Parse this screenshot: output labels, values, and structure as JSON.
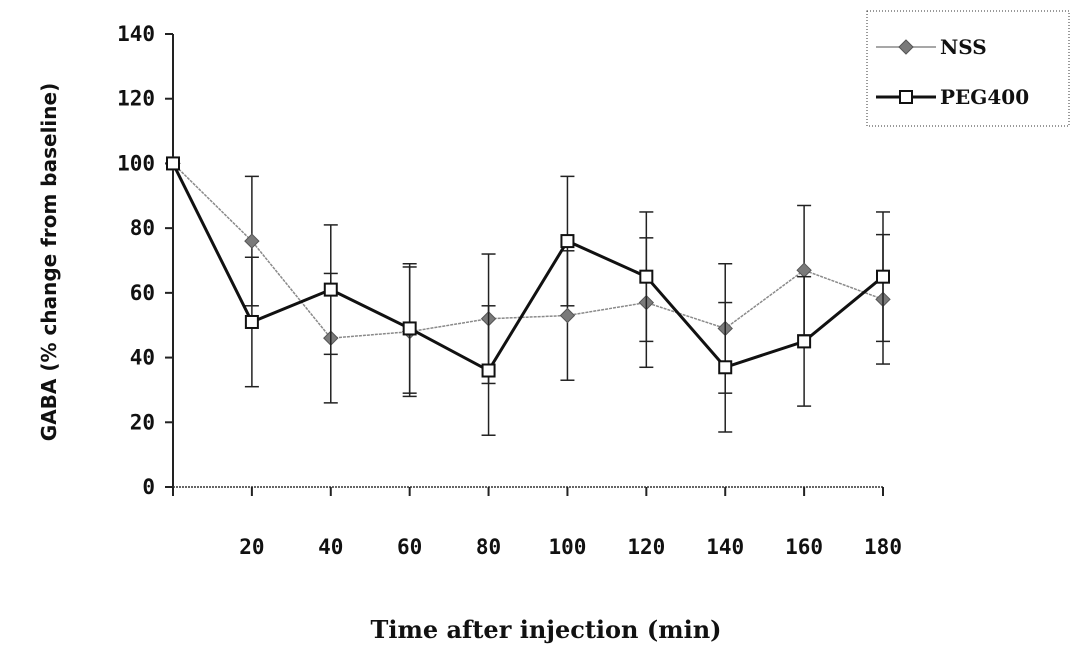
{
  "chart_data": {
    "type": "line",
    "xlabel": "Time after injection (min)",
    "ylabel": "GABA (% change from baseline)",
    "x": [
      0,
      20,
      40,
      60,
      80,
      100,
      120,
      140,
      160,
      180
    ],
    "x_tick_labels": [
      "20",
      "40",
      "60",
      "80",
      "100",
      "120",
      "140",
      "160",
      "180"
    ],
    "y_tick_labels": [
      "0",
      "20",
      "40",
      "60",
      "80",
      "100",
      "120",
      "140"
    ],
    "xlim": [
      0,
      180
    ],
    "ylim": [
      0,
      140
    ],
    "grid": false,
    "legend_position": "top-right",
    "series": [
      {
        "name": "NSS",
        "marker": "diamond",
        "color": "#8a8a8a",
        "values": [
          100,
          76,
          46,
          48,
          52,
          53,
          57,
          49,
          67,
          58
        ],
        "error": [
          0,
          20,
          20,
          20,
          20,
          20,
          20,
          20,
          20,
          20
        ]
      },
      {
        "name": "PEG400",
        "marker": "square",
        "color": "#111111",
        "values": [
          100,
          51,
          61,
          49,
          36,
          76,
          65,
          37,
          45,
          65
        ],
        "error": [
          0,
          20,
          20,
          20,
          20,
          20,
          20,
          20,
          20,
          20
        ]
      }
    ]
  }
}
